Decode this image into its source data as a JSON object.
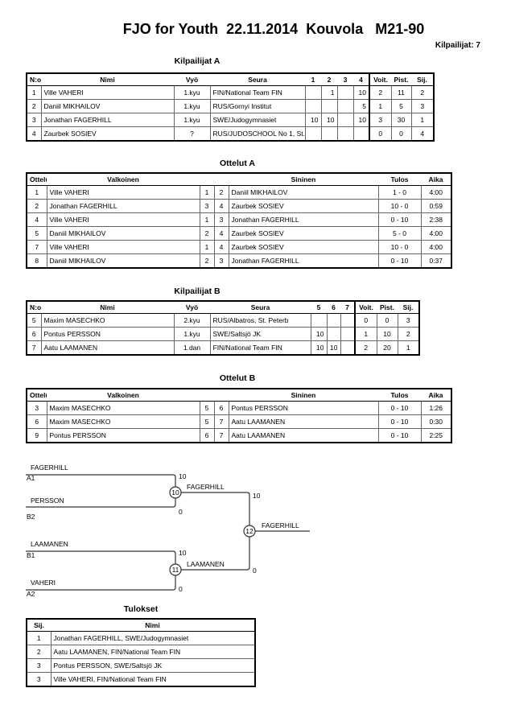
{
  "title": "FJO for Youth  22.11.2014  Kouvola   M21-90",
  "count": "Kilpailijat: 7",
  "poolA": {
    "heading": "Kilpailijat A",
    "headers": [
      "N:o",
      "Nimi",
      "Vyö",
      "Seura",
      "1",
      "2",
      "3",
      "4",
      "Voit.",
      "Pist.",
      "Sij."
    ],
    "rows": [
      [
        "1",
        "Ville VAHERI",
        "1.kyu",
        "FIN/National Team FIN",
        "",
        "1",
        "",
        "10",
        "2",
        "11",
        "2"
      ],
      [
        "2",
        "Daniil MIKHAILOV",
        "1.kyu",
        "RUS/Gornyi Institut",
        "",
        "",
        "",
        "5",
        "1",
        "5",
        "3"
      ],
      [
        "3",
        "Jonathan FAGERHILL",
        "1.kyu",
        "SWE/Judogymnasiet",
        "10",
        "10",
        "",
        "10",
        "3",
        "30",
        "1"
      ],
      [
        "4",
        "Zaurbek SOSIEV",
        "?",
        "RUS/JUDOSCHOOL No 1, St.",
        "",
        "",
        "",
        "",
        "0",
        "0",
        "4"
      ]
    ]
  },
  "matchesA": {
    "heading": "Ottelut A",
    "headers": [
      "Ottelu",
      "Valkoinen",
      "",
      "",
      "Sininen",
      "Tulos",
      "Aika"
    ],
    "rows": [
      [
        "1",
        "Ville VAHERI",
        "1",
        "2",
        "Daniil MIKHAILOV",
        "1 - 0",
        "4:00"
      ],
      [
        "2",
        "Jonathan FAGERHILL",
        "3",
        "4",
        "Zaurbek SOSIEV",
        "10 - 0",
        "0:59"
      ],
      [
        "4",
        "Ville VAHERI",
        "1",
        "3",
        "Jonathan FAGERHILL",
        "0 - 10",
        "2:38"
      ],
      [
        "5",
        "Daniil MIKHAILOV",
        "2",
        "4",
        "Zaurbek SOSIEV",
        "5 - 0",
        "4:00"
      ],
      [
        "7",
        "Ville VAHERI",
        "1",
        "4",
        "Zaurbek SOSIEV",
        "10 - 0",
        "4:00"
      ],
      [
        "8",
        "Daniil MIKHAILOV",
        "2",
        "3",
        "Jonathan FAGERHILL",
        "0 - 10",
        "0:37"
      ]
    ]
  },
  "poolB": {
    "heading": "Kilpailijat B",
    "headers": [
      "N:o",
      "Nimi",
      "Vyö",
      "Seura",
      "5",
      "6",
      "7",
      "Voit.",
      "Pist.",
      "Sij."
    ],
    "rows": [
      [
        "5",
        "Maxim MASECHKO",
        "2.kyu",
        "RUS/Albatros, St. Peterb",
        "",
        "",
        "",
        "0",
        "0",
        "3"
      ],
      [
        "6",
        "Pontus PERSSON",
        "1.kyu",
        "SWE/Saltsjö JK",
        "10",
        "",
        "",
        "1",
        "10",
        "2"
      ],
      [
        "7",
        "Aatu LAAMANEN",
        "1.dan",
        "FIN/National Team FIN",
        "10",
        "10",
        "",
        "2",
        "20",
        "1"
      ]
    ]
  },
  "matchesB": {
    "heading": "Ottelut B",
    "headers": [
      "Ottelu",
      "Valkoinen",
      "",
      "",
      "Sininen",
      "Tulos",
      "Aika"
    ],
    "rows": [
      [
        "3",
        "Maxim MASECHKO",
        "5",
        "6",
        "Pontus PERSSON",
        "0 - 10",
        "1:26"
      ],
      [
        "6",
        "Maxim MASECHKO",
        "5",
        "7",
        "Aatu LAAMANEN",
        "0 - 10",
        "0:30"
      ],
      [
        "9",
        "Pontus PERSSON",
        "6",
        "7",
        "Aatu LAAMANEN",
        "0 - 10",
        "2:25"
      ]
    ]
  },
  "bracket": {
    "a1": "FAGERHILL",
    "a1_seed": "A1",
    "b2": "PERSSON",
    "b2_seed": "B2",
    "b1": "LAAMANEN",
    "b1_seed": "B1",
    "a2": "VAHERI",
    "a2_seed": "A2",
    "m10": "10",
    "m11": "11",
    "m12": "12",
    "m10_winner": "FAGERHILL",
    "m11_winner": "LAAMANEN",
    "final_winner": "FAGERHILL",
    "s_a1": "10",
    "s_b2": "0",
    "s_b1": "10",
    "s_a2": "0",
    "s_f1": "10",
    "s_f2": "0"
  },
  "results": {
    "heading": "Tulokset",
    "headers": [
      "Sij.",
      "Nimi"
    ],
    "rows": [
      [
        "1",
        "Jonathan FAGERHILL, SWE/Judogymnasiet"
      ],
      [
        "2",
        "Aatu LAAMANEN, FIN/National Team FIN"
      ],
      [
        "3",
        "Pontus PERSSON, SWE/Saltsjö JK"
      ],
      [
        "3",
        "Ville VAHERI, FIN/National Team FIN"
      ]
    ]
  }
}
